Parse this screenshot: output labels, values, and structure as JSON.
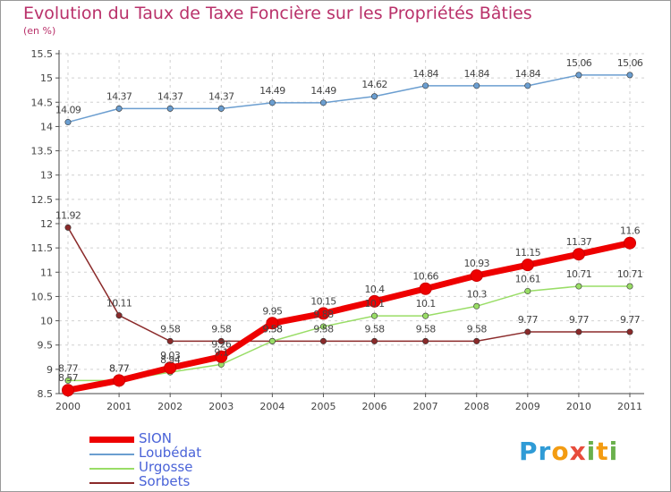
{
  "chart_data": {
    "type": "line",
    "title": "Evolution du Taux de Taxe Foncière sur les Propriétés Bâties",
    "subtitle": "(en %)",
    "x": [
      "2000",
      "2001",
      "2002",
      "2003",
      "2004",
      "2005",
      "2006",
      "2007",
      "2008",
      "2009",
      "2010",
      "2011"
    ],
    "ylim": [
      8.5,
      15.5
    ],
    "yticks": [
      "8.5",
      "9",
      "9.5",
      "10",
      "10.5",
      "11",
      "11.5",
      "12",
      "12.5",
      "13",
      "13.5",
      "14",
      "14.5",
      "15",
      "15.5"
    ],
    "series": [
      {
        "name": "SION",
        "color": "#ee0000",
        "values": [
          8.57,
          8.77,
          9.03,
          9.26,
          9.95,
          10.15,
          10.4,
          10.66,
          10.93,
          11.15,
          11.37,
          11.6
        ],
        "labels": [
          "8.57",
          "8.77",
          "9.03",
          "9.26",
          "9.95",
          "10.15",
          "10.4",
          "10.66",
          "10.93",
          "11.15",
          "11.37",
          "11.6"
        ]
      },
      {
        "name": "Loubédat",
        "color": "#6b9ed0",
        "values": [
          14.09,
          14.37,
          14.37,
          14.37,
          14.49,
          14.49,
          14.62,
          14.84,
          14.84,
          14.84,
          15.06,
          15.06
        ],
        "labels": [
          "14.09",
          "14.37",
          "14.37",
          "14.37",
          "14.49",
          "14.49",
          "14.62",
          "14.84",
          "14.84",
          "14.84",
          "15.06",
          "15.06"
        ]
      },
      {
        "name": "Urgosse",
        "color": "#99dd66",
        "values": [
          8.77,
          8.77,
          8.94,
          9.1,
          9.58,
          9.88,
          10.1,
          10.1,
          10.3,
          10.61,
          10.71,
          10.71
        ],
        "labels": [
          "8.77",
          "8.77",
          "8.94",
          "9.1",
          "9.58",
          "9.88",
          "10.1",
          "10.1",
          "10.3",
          "10.61",
          "10.71",
          "10.71"
        ]
      },
      {
        "name": "Sorbets",
        "color": "#8b2a2a",
        "values": [
          11.92,
          10.11,
          9.58,
          9.58,
          9.58,
          9.58,
          9.58,
          9.58,
          9.58,
          9.77,
          9.77,
          9.77
        ],
        "labels": [
          "11.92",
          "10.11",
          "9.58",
          "9.58",
          "9.58",
          "9.58",
          "9.58",
          "9.58",
          "9.58",
          "9.77",
          "9.77",
          "9.77"
        ]
      }
    ]
  },
  "logo": {
    "letters": [
      "P",
      "r",
      "o",
      "x",
      "i",
      "t",
      "i"
    ],
    "colors": [
      "#2f9bd6",
      "#2f9bd6",
      "#f39c12",
      "#e74c3c",
      "#6ab04c",
      "#f39c12",
      "#6ab04c"
    ]
  }
}
